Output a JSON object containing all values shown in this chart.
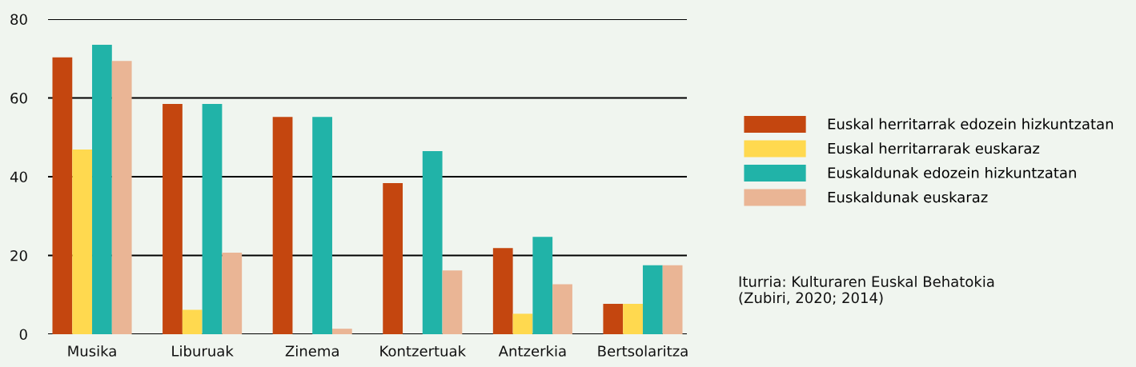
{
  "chart_data": {
    "type": "bar",
    "categories": [
      "Musika",
      "Liburuak",
      "Zinema",
      "Kontzertuak",
      "Antzerkia",
      "Bertsolaritza"
    ],
    "series": [
      {
        "name": "Euskal herritarrak edozein hizkuntzatan",
        "color": "#c4460f",
        "values": [
          70.3,
          58.5,
          55.2,
          38.4,
          21.9,
          7.7
        ]
      },
      {
        "name": "Euskal herritarrarak euskaraz",
        "color": "#ffd94f",
        "values": [
          46.9,
          6.2,
          0,
          0,
          5.2,
          7.7
        ]
      },
      {
        "name": "Euskaldunak edozein hizkuntzatan",
        "color": "#21b3a8",
        "values": [
          73.5,
          58.5,
          55.2,
          46.5,
          24.7,
          17.5
        ]
      },
      {
        "name": "Euskaldunak euskaraz",
        "color": "#eab595",
        "values": [
          69.4,
          20.7,
          1.4,
          16.2,
          12.7,
          17.5
        ]
      }
    ],
    "ylim": [
      0,
      80
    ],
    "yticks": [
      0,
      20,
      40,
      60,
      80
    ],
    "grid": "y",
    "legend": "right",
    "annotations": [
      "Iturria: Kulturaren Euskal Behatokia\n(Zubiri, 2020; 2014)"
    ]
  }
}
